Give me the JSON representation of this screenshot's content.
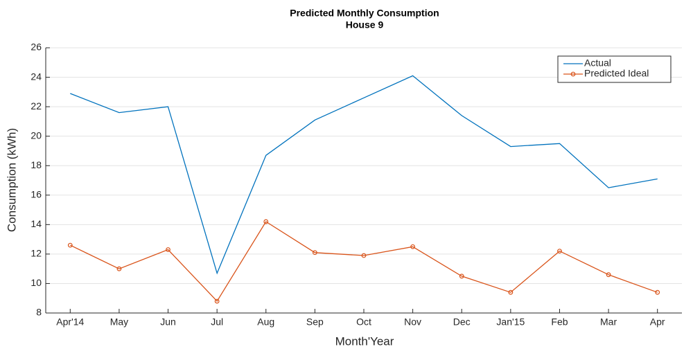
{
  "chart_data": {
    "type": "line",
    "title": "Predicted Monthly Consumption",
    "subtitle": "House 9",
    "x_label": "Month'Year",
    "y_label": "Consumption (kWh)",
    "categories": [
      "Apr'14",
      "May",
      "Jun",
      "Jul",
      "Aug",
      "Sep",
      "Oct",
      "Nov",
      "Dec",
      "Jan'15",
      "Feb",
      "Mar",
      "Apr"
    ],
    "series": [
      {
        "name": "Actual",
        "color": "#0072bd",
        "marker": false,
        "values": [
          22.9,
          21.6,
          22.0,
          10.7,
          18.7,
          21.1,
          22.6,
          24.1,
          21.4,
          19.3,
          19.5,
          16.5,
          17.1
        ]
      },
      {
        "name": "Predicted Ideal",
        "color": "#d95319",
        "marker": true,
        "values": [
          12.6,
          11.0,
          12.3,
          8.8,
          14.2,
          12.1,
          11.9,
          12.5,
          10.5,
          9.4,
          12.2,
          10.6,
          9.4
        ]
      }
    ],
    "ylim": [
      8,
      26
    ],
    "yticks": [
      8,
      10,
      12,
      14,
      16,
      18,
      20,
      22,
      24,
      26
    ],
    "grid": true,
    "legend": "top-right"
  }
}
